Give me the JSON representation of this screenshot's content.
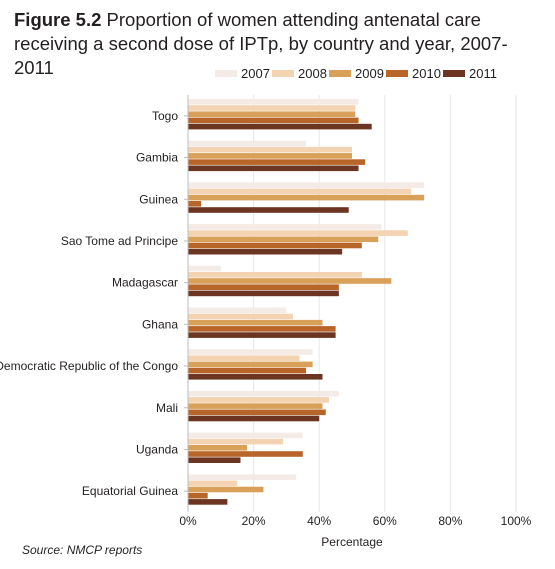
{
  "figure": {
    "label": "Figure 5.2",
    "title": "Proportion of women attending antenatal care receiving a second dose of IPTp, by country and year, 2007-2011"
  },
  "source": {
    "label": "Source:",
    "text": "NMCP reports"
  },
  "chart_data": {
    "type": "bar",
    "orientation": "horizontal",
    "categories": [
      "Togo",
      "Gambia",
      "Guinea",
      "Sao Tome ad Principe",
      "Madagascar",
      "Ghana",
      "Democratic Republic of the Congo",
      "Mali",
      "Uganda",
      "Equatorial Guinea"
    ],
    "series": [
      {
        "name": "2007",
        "color": "#f5ebe6",
        "values": [
          52,
          36,
          72,
          59,
          10,
          30,
          38,
          46,
          35,
          33
        ]
      },
      {
        "name": "2008",
        "color": "#f3d3b1",
        "values": [
          51,
          50,
          68,
          67,
          53,
          32,
          34,
          43,
          29,
          15
        ]
      },
      {
        "name": "2009",
        "color": "#d9a05a",
        "values": [
          51,
          50,
          72,
          58,
          62,
          41,
          38,
          41,
          18,
          23
        ]
      },
      {
        "name": "2010",
        "color": "#b8652a",
        "values": [
          52,
          54,
          4,
          53,
          46,
          45,
          36,
          42,
          35,
          6
        ]
      },
      {
        "name": "2011",
        "color": "#6b3521",
        "values": [
          56,
          52,
          49,
          47,
          46,
          45,
          41,
          40,
          16,
          12
        ]
      }
    ],
    "xlabel": "Percentage",
    "xlim": [
      0,
      100
    ],
    "xticks": [
      "0%",
      "20%",
      "40%",
      "60%",
      "80%",
      "100%"
    ],
    "grid": true,
    "legend_position": "top-right"
  }
}
